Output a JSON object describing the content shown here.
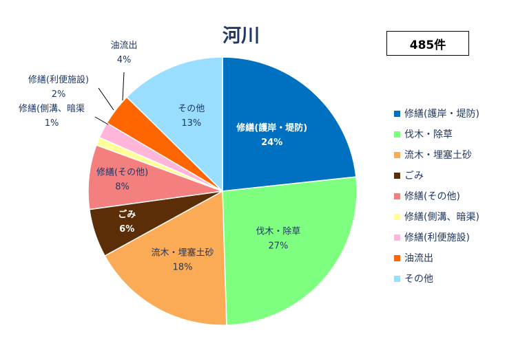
{
  "chart_data": {
    "type": "pie",
    "title": "河川",
    "total_label": "485件",
    "slices": [
      {
        "label": "修繕(護岸・堤防)",
        "legend": "修繕(護岸・堤防)",
        "value": 24,
        "value_label": "24%",
        "color": "#0070c0",
        "label_color": "#ffffff",
        "bold": true
      },
      {
        "label": "伐木・除草",
        "legend": "伐木・除草",
        "value": 27,
        "value_label": "27%",
        "color": "#7fff7f",
        "label_color": "#1f3864",
        "bold": false
      },
      {
        "label": "流木・埋塞土砂",
        "legend": "流木・埋塞土砂",
        "value": 18,
        "value_label": "18%",
        "color": "#fbaa55",
        "label_color": "#1f3864",
        "bold": false
      },
      {
        "label": "ごみ",
        "legend": "ごみ",
        "value": 6,
        "value_label": "6%",
        "color": "#5c2e08",
        "label_color": "#ffffff",
        "bold": true
      },
      {
        "label": "修繕(その他)",
        "legend": "修繕(その他)",
        "value": 8,
        "value_label": "8%",
        "color": "#f47f7f",
        "label_color": "#1f3864",
        "bold": false
      },
      {
        "label": "修繕(側溝、暗渠",
        "legend": "修繕(側溝、暗渠)",
        "value": 1,
        "value_label": "1%",
        "color": "#ffff99",
        "label_color": "#1f3864",
        "bold": false
      },
      {
        "label": "修繕(利便施設)",
        "legend": "修繕(利便施設)",
        "value": 2,
        "value_label": "2%",
        "color": "#ffb6d9",
        "label_color": "#1f3864",
        "bold": false
      },
      {
        "label": "油流出",
        "legend": "油流出",
        "value": 4,
        "value_label": "4%",
        "color": "#ff6600",
        "label_color": "#1f3864",
        "bold": false
      },
      {
        "label": "その他",
        "legend": "その他",
        "value": 13,
        "value_label": "13%",
        "color": "#99ddff",
        "label_color": "#1f3864",
        "bold": false
      }
    ],
    "legend_placement": "right"
  }
}
